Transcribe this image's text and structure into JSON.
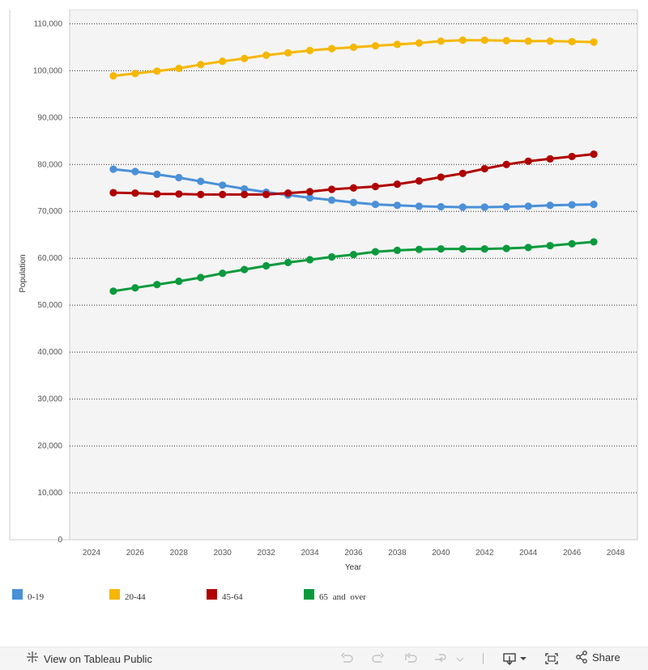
{
  "chart_data": {
    "type": "line",
    "title": "",
    "xlabel": "Year",
    "ylabel": "Population",
    "xlim": [
      2023,
      2049
    ],
    "ylim": [
      0,
      113000
    ],
    "x_ticks": [
      2024,
      2026,
      2028,
      2030,
      2032,
      2034,
      2036,
      2038,
      2040,
      2042,
      2044,
      2046,
      2048
    ],
    "y_ticks": [
      0,
      10000,
      20000,
      30000,
      40000,
      50000,
      60000,
      70000,
      80000,
      90000,
      100000,
      110000
    ],
    "y_tick_labels": [
      "0",
      "10,000",
      "20,000",
      "30,000",
      "40,000",
      "50,000",
      "60,000",
      "70,000",
      "80,000",
      "90,000",
      "100,000",
      "110,000"
    ],
    "grid": "horizontal dotted",
    "legend_position": "bottom",
    "x": [
      2025,
      2026,
      2027,
      2028,
      2029,
      2030,
      2031,
      2032,
      2033,
      2034,
      2035,
      2036,
      2037,
      2038,
      2039,
      2040,
      2041,
      2042,
      2043,
      2044,
      2045,
      2046,
      2047
    ],
    "series": [
      {
        "name": "0-19",
        "color": "#4a90d9",
        "values": [
          79000,
          78500,
          77900,
          77200,
          76400,
          75600,
          74800,
          74100,
          73500,
          72900,
          72400,
          71900,
          71500,
          71300,
          71100,
          71000,
          70900,
          70900,
          71000,
          71100,
          71300,
          71400,
          71500
        ]
      },
      {
        "name": "20-44",
        "color": "#f5b700",
        "values": [
          98900,
          99400,
          99900,
          100500,
          101300,
          102000,
          102600,
          103300,
          103800,
          104300,
          104700,
          105000,
          105300,
          105600,
          105900,
          106300,
          106500,
          106500,
          106400,
          106300,
          106300,
          106200,
          106100
        ]
      },
      {
        "name": "45-64",
        "color": "#b00000",
        "values": [
          74000,
          73900,
          73700,
          73700,
          73600,
          73600,
          73600,
          73600,
          73900,
          74200,
          74700,
          75000,
          75300,
          75800,
          76500,
          77300,
          78100,
          79100,
          80000,
          80700,
          81200,
          81700,
          82200
        ]
      },
      {
        "name": "65 and over",
        "color": "#0a9a3d",
        "values": [
          53000,
          53700,
          54400,
          55100,
          55900,
          56800,
          57600,
          58400,
          59100,
          59700,
          60300,
          60800,
          61400,
          61700,
          61900,
          62000,
          62000,
          62000,
          62100,
          62300,
          62700,
          63100,
          63500
        ]
      }
    ]
  },
  "legend": {
    "items": [
      {
        "label": "0-19",
        "color": "#4a90d9"
      },
      {
        "label": "20-44",
        "color": "#f5b700"
      },
      {
        "label": "45-64",
        "color": "#b00000"
      },
      {
        "label": "65 and over",
        "color": "#0a9a3d"
      }
    ]
  },
  "footer": {
    "view_label": "View on Tableau Public",
    "share_label": "Share"
  },
  "icons": {
    "tableau": "tableau-logo-icon",
    "undo": "undo-icon",
    "redo": "redo-icon",
    "revert": "revert-icon",
    "refresh": "refresh-icon",
    "download": "download-icon",
    "fullscreen": "fullscreen-icon",
    "share": "share-icon"
  }
}
